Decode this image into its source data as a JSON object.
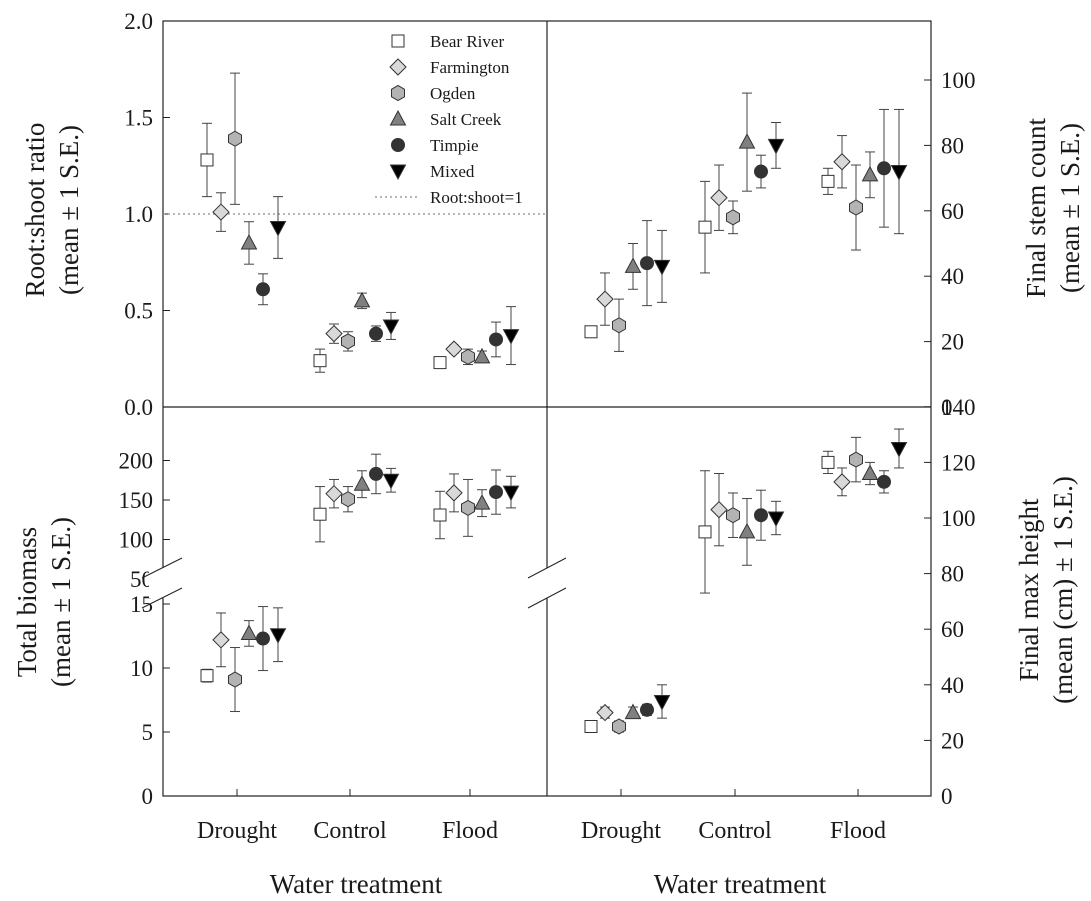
{
  "legend": {
    "items": [
      {
        "name": "Bear River",
        "marker": "square",
        "fill": "#ffffff"
      },
      {
        "name": "Farmington",
        "marker": "diamond",
        "fill": "#d9d9d9"
      },
      {
        "name": "Ogden",
        "marker": "hexagon",
        "fill": "#b3b3b3"
      },
      {
        "name": "Salt Creek",
        "marker": "triangle-up",
        "fill": "#808080"
      },
      {
        "name": "Timpie",
        "marker": "circle",
        "fill": "#333333"
      },
      {
        "name": "Mixed",
        "marker": "triangle-down",
        "fill": "#000000"
      }
    ],
    "reference_label": "Root:shoot=1"
  },
  "xlabels": {
    "left": "Water treatment",
    "right": "Water treatment"
  },
  "categories": [
    "Drought",
    "Control",
    "Flood"
  ],
  "chart_data": [
    {
      "type": "scatter",
      "panel": "top-left",
      "ylabel": [
        "Root:shoot ratio",
        "(mean ± 1 S.E.)"
      ],
      "ylim": [
        0,
        2.0
      ],
      "yticks": [
        "0.0",
        "0.5",
        "1.0",
        "1.5",
        "2.0"
      ],
      "reference_line": 1.0,
      "categories": [
        "Drought",
        "Control",
        "Flood"
      ],
      "series": [
        {
          "name": "Bear River",
          "values": [
            1.28,
            0.24,
            0.23
          ],
          "se": [
            0.19,
            0.06,
            0.02
          ]
        },
        {
          "name": "Farmington",
          "values": [
            1.01,
            0.38,
            0.3
          ],
          "se": [
            0.1,
            0.05,
            0.02
          ]
        },
        {
          "name": "Ogden",
          "values": [
            1.39,
            0.34,
            0.26
          ],
          "se": [
            0.34,
            0.05,
            0.04
          ]
        },
        {
          "name": "Salt Creek",
          "values": [
            0.85,
            0.55,
            0.26
          ],
          "se": [
            0.11,
            0.04,
            0.03
          ]
        },
        {
          "name": "Timpie",
          "values": [
            0.61,
            0.38,
            0.35
          ],
          "se": [
            0.08,
            0.04,
            0.09
          ]
        },
        {
          "name": "Mixed",
          "values": [
            0.93,
            0.42,
            0.37
          ],
          "se": [
            0.16,
            0.07,
            0.15
          ]
        }
      ]
    },
    {
      "type": "scatter",
      "panel": "top-right",
      "ylabel": [
        "Final stem count",
        "(mean ± 1 S.E.)"
      ],
      "ylim": [
        0,
        118
      ],
      "yticks": [
        "0",
        "20",
        "40",
        "60",
        "80",
        "100"
      ],
      "categories": [
        "Drought",
        "Control",
        "Flood"
      ],
      "series": [
        {
          "name": "Bear River",
          "values": [
            23,
            55,
            69
          ],
          "se": [
            0,
            14,
            4
          ]
        },
        {
          "name": "Farmington",
          "values": [
            33,
            64,
            75
          ],
          "se": [
            8,
            10,
            8
          ]
        },
        {
          "name": "Ogden",
          "values": [
            25,
            58,
            61
          ],
          "se": [
            8,
            5,
            13
          ]
        },
        {
          "name": "Salt Creek",
          "values": [
            43,
            81,
            71
          ],
          "se": [
            7,
            15,
            7
          ]
        },
        {
          "name": "Timpie",
          "values": [
            44,
            72,
            73
          ],
          "se": [
            13,
            5,
            18
          ]
        },
        {
          "name": "Mixed",
          "values": [
            43,
            80,
            72
          ],
          "se": [
            11,
            7,
            19
          ]
        }
      ]
    },
    {
      "type": "scatter",
      "panel": "bottom-left",
      "ylabel": [
        "Total biomass",
        "(mean ± 1 S.E.)"
      ],
      "axis_break": true,
      "yticks_lower": [
        "0",
        "5",
        "10",
        "15"
      ],
      "yticks_upper": [
        "50",
        "100",
        "150",
        "200"
      ],
      "categories": [
        "Drought",
        "Control",
        "Flood"
      ],
      "series": [
        {
          "name": "Bear River",
          "values": [
            9.4,
            132,
            131
          ],
          "se": [
            0.5,
            35,
            30
          ]
        },
        {
          "name": "Farmington",
          "values": [
            12.2,
            158,
            159
          ],
          "se": [
            2.1,
            18,
            24
          ]
        },
        {
          "name": "Ogden",
          "values": [
            9.1,
            151,
            140
          ],
          "se": [
            2.5,
            16,
            36
          ]
        },
        {
          "name": "Salt Creek",
          "values": [
            12.7,
            170,
            146
          ],
          "se": [
            1.0,
            17,
            17
          ]
        },
        {
          "name": "Timpie",
          "values": [
            12.3,
            183,
            160
          ],
          "se": [
            2.5,
            25,
            28
          ]
        },
        {
          "name": "Mixed",
          "values": [
            12.6,
            175,
            160
          ],
          "se": [
            2.1,
            15,
            20
          ]
        }
      ]
    },
    {
      "type": "scatter",
      "panel": "bottom-right",
      "ylabel": [
        "Final max height",
        "(mean (cm) ± 1 S.E.)"
      ],
      "ylim": [
        0,
        140
      ],
      "yticks": [
        "0",
        "20",
        "40",
        "60",
        "80",
        "100",
        "120",
        "140"
      ],
      "categories": [
        "Drought",
        "Control",
        "Flood"
      ],
      "series": [
        {
          "name": "Bear River",
          "values": [
            25,
            95,
            120
          ],
          "se": [
            0,
            22,
            4
          ]
        },
        {
          "name": "Farmington",
          "values": [
            30,
            103,
            113
          ],
          "se": [
            2,
            13,
            5
          ]
        },
        {
          "name": "Ogden",
          "values": [
            25,
            101,
            121
          ],
          "se": [
            2,
            8,
            8
          ]
        },
        {
          "name": "Salt Creek",
          "values": [
            30,
            95,
            116
          ],
          "se": [
            2,
            12,
            4
          ]
        },
        {
          "name": "Timpie",
          "values": [
            31,
            101,
            113
          ],
          "se": [
            2,
            9,
            4
          ]
        },
        {
          "name": "Mixed",
          "values": [
            34,
            100,
            125
          ],
          "se": [
            6,
            6,
            7
          ]
        }
      ]
    }
  ]
}
